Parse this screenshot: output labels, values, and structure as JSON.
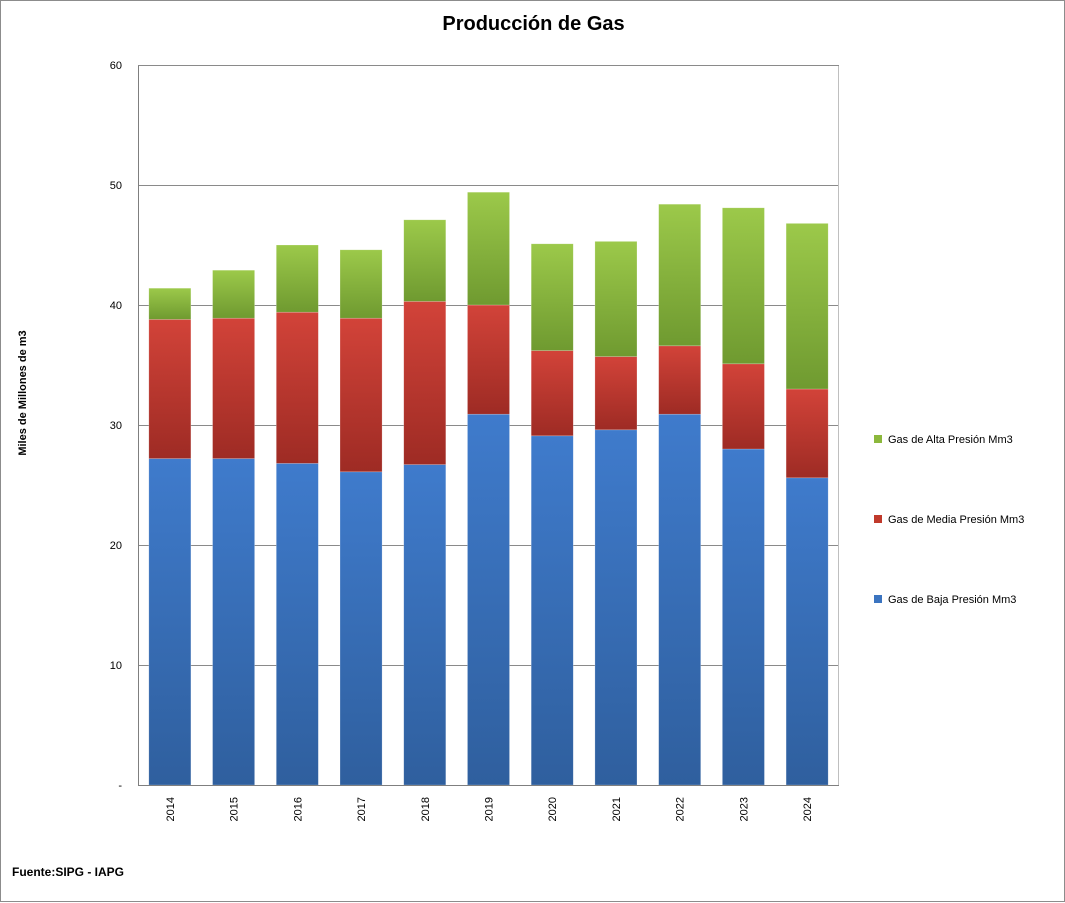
{
  "chart_data": {
    "type": "bar",
    "stacked": true,
    "title": "Producción de Gas",
    "ylabel": "Miles  de Millones de m3",
    "xlabel": "",
    "source": "Fuente:SIPG - IAPG",
    "ylim": [
      0,
      60
    ],
    "ytick_values": [
      0,
      10,
      20,
      30,
      40,
      50,
      60
    ],
    "ytick_labels": [
      "-",
      "10",
      "20",
      "30",
      "40",
      "50",
      "60"
    ],
    "grid": true,
    "legend_position": "right",
    "categories": [
      "2014",
      "2015",
      "2016",
      "2017",
      "2018",
      "2019",
      "2020",
      "2021",
      "2022",
      "2023",
      "2024"
    ],
    "series": [
      {
        "name": "Gas de Baja Presión Mm3",
        "color": "#3b74c0",
        "values": [
          27.2,
          27.2,
          26.8,
          26.1,
          26.7,
          30.9,
          29.1,
          29.6,
          30.9,
          28.0,
          25.6
        ]
      },
      {
        "name": "Gas de Media Presión Mm3",
        "color": "#c0392b",
        "values": [
          11.6,
          11.7,
          12.6,
          12.8,
          13.6,
          9.1,
          7.1,
          6.1,
          5.7,
          7.1,
          7.4
        ]
      },
      {
        "name": "Gas de Alta Presión Mm3",
        "color": "#8cb83c",
        "values": [
          2.6,
          4.0,
          5.6,
          5.7,
          6.8,
          9.4,
          8.9,
          9.6,
          11.8,
          13.0,
          13.8
        ]
      }
    ]
  }
}
